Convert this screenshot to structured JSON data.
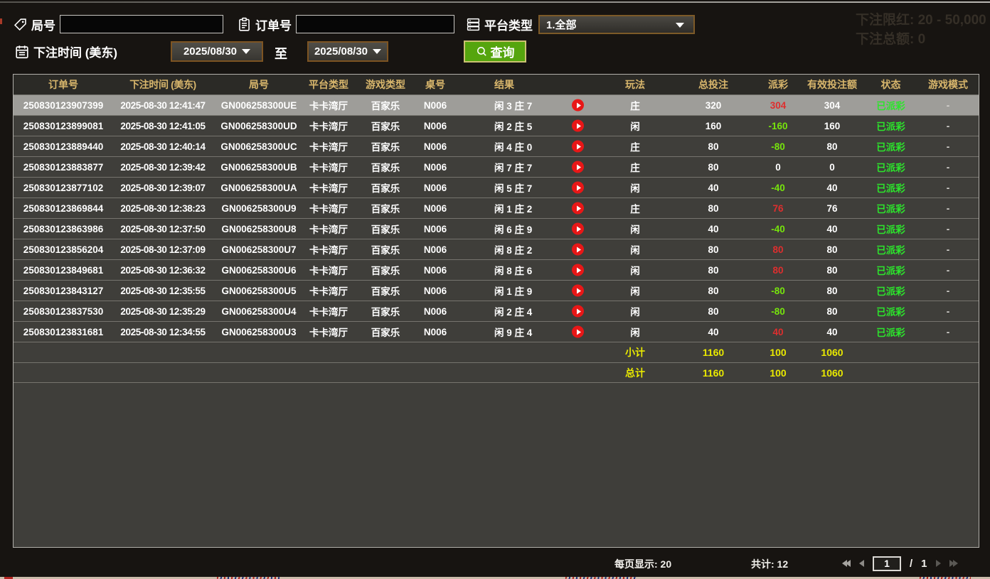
{
  "page": {
    "watermark_line1": "下注限红: 20 - 50,000",
    "watermark_line2": "下注总额: 0"
  },
  "filters": {
    "game_no": {
      "label": "局号",
      "value": "",
      "icon": "tag-icon"
    },
    "order_no": {
      "label": "订单号",
      "value": "",
      "icon": "clipboard-icon"
    },
    "platform": {
      "label": "平台类型",
      "value": "1.全部",
      "icon": "server-icon"
    },
    "bet_time": {
      "label": "下注时间 (美东)",
      "icon": "calendar-icon"
    },
    "date_from": "2025/08/30",
    "to_label": "至",
    "date_to": "2025/08/30",
    "query": {
      "label": "查询",
      "icon": "search-icon"
    }
  },
  "table": {
    "headers": [
      "订单号",
      "下注时间 (美东)",
      "局号",
      "平台类型",
      "游戏类型",
      "桌号",
      "结果",
      "玩法",
      "总投注",
      "派彩",
      "有效投注额",
      "状态",
      "游戏模式"
    ],
    "rows": [
      {
        "order_no": "250830123907399",
        "bet_time": "2025-08-30 12:41:47",
        "game_no": "GN006258300UE",
        "platform": "卡卡湾厅",
        "game_type": "百家乐",
        "table_no": "N006",
        "result": "闲 3 庄 7",
        "play_type": "庄",
        "total_bet": 320,
        "payout": 304,
        "valid_bet": 304,
        "status": "已派彩",
        "game_mode": "-",
        "selected": true
      },
      {
        "order_no": "250830123899081",
        "bet_time": "2025-08-30 12:41:05",
        "game_no": "GN006258300UD",
        "platform": "卡卡湾厅",
        "game_type": "百家乐",
        "table_no": "N006",
        "result": "闲 2 庄 5",
        "play_type": "闲",
        "total_bet": 160,
        "payout": -160,
        "valid_bet": 160,
        "status": "已派彩",
        "game_mode": "-",
        "selected": false
      },
      {
        "order_no": "250830123889440",
        "bet_time": "2025-08-30 12:40:14",
        "game_no": "GN006258300UC",
        "platform": "卡卡湾厅",
        "game_type": "百家乐",
        "table_no": "N006",
        "result": "闲 4 庄 0",
        "play_type": "庄",
        "total_bet": 80,
        "payout": -80,
        "valid_bet": 80,
        "status": "已派彩",
        "game_mode": "-",
        "selected": false
      },
      {
        "order_no": "250830123883877",
        "bet_time": "2025-08-30 12:39:42",
        "game_no": "GN006258300UB",
        "platform": "卡卡湾厅",
        "game_type": "百家乐",
        "table_no": "N006",
        "result": "闲 7 庄 7",
        "play_type": "庄",
        "total_bet": 80,
        "payout": 0,
        "valid_bet": 0,
        "status": "已派彩",
        "game_mode": "-",
        "selected": false
      },
      {
        "order_no": "250830123877102",
        "bet_time": "2025-08-30 12:39:07",
        "game_no": "GN006258300UA",
        "platform": "卡卡湾厅",
        "game_type": "百家乐",
        "table_no": "N006",
        "result": "闲 5 庄 7",
        "play_type": "闲",
        "total_bet": 40,
        "payout": -40,
        "valid_bet": 40,
        "status": "已派彩",
        "game_mode": "-",
        "selected": false
      },
      {
        "order_no": "250830123869844",
        "bet_time": "2025-08-30 12:38:23",
        "game_no": "GN006258300U9",
        "platform": "卡卡湾厅",
        "game_type": "百家乐",
        "table_no": "N006",
        "result": "闲 1 庄 2",
        "play_type": "庄",
        "total_bet": 80,
        "payout": 76,
        "valid_bet": 76,
        "status": "已派彩",
        "game_mode": "-",
        "selected": false
      },
      {
        "order_no": "250830123863986",
        "bet_time": "2025-08-30 12:37:50",
        "game_no": "GN006258300U8",
        "platform": "卡卡湾厅",
        "game_type": "百家乐",
        "table_no": "N006",
        "result": "闲 6 庄 9",
        "play_type": "闲",
        "total_bet": 40,
        "payout": -40,
        "valid_bet": 40,
        "status": "已派彩",
        "game_mode": "-",
        "selected": false
      },
      {
        "order_no": "250830123856204",
        "bet_time": "2025-08-30 12:37:09",
        "game_no": "GN006258300U7",
        "platform": "卡卡湾厅",
        "game_type": "百家乐",
        "table_no": "N006",
        "result": "闲 8 庄 2",
        "play_type": "闲",
        "total_bet": 80,
        "payout": 80,
        "valid_bet": 80,
        "status": "已派彩",
        "game_mode": "-",
        "selected": false
      },
      {
        "order_no": "250830123849681",
        "bet_time": "2025-08-30 12:36:32",
        "game_no": "GN006258300U6",
        "platform": "卡卡湾厅",
        "game_type": "百家乐",
        "table_no": "N006",
        "result": "闲 8 庄 6",
        "play_type": "闲",
        "total_bet": 80,
        "payout": 80,
        "valid_bet": 80,
        "status": "已派彩",
        "game_mode": "-",
        "selected": false
      },
      {
        "order_no": "250830123843127",
        "bet_time": "2025-08-30 12:35:55",
        "game_no": "GN006258300U5",
        "platform": "卡卡湾厅",
        "game_type": "百家乐",
        "table_no": "N006",
        "result": "闲 1 庄 9",
        "play_type": "闲",
        "total_bet": 80,
        "payout": -80,
        "valid_bet": 80,
        "status": "已派彩",
        "game_mode": "-",
        "selected": false
      },
      {
        "order_no": "250830123837530",
        "bet_time": "2025-08-30 12:35:29",
        "game_no": "GN006258300U4",
        "platform": "卡卡湾厅",
        "game_type": "百家乐",
        "table_no": "N006",
        "result": "闲 2 庄 4",
        "play_type": "闲",
        "total_bet": 80,
        "payout": -80,
        "valid_bet": 80,
        "status": "已派彩",
        "game_mode": "-",
        "selected": false
      },
      {
        "order_no": "250830123831681",
        "bet_time": "2025-08-30 12:34:55",
        "game_no": "GN006258300U3",
        "platform": "卡卡湾厅",
        "game_type": "百家乐",
        "table_no": "N006",
        "result": "闲 9 庄 4",
        "play_type": "闲",
        "total_bet": 40,
        "payout": 40,
        "valid_bet": 40,
        "status": "已派彩",
        "game_mode": "-",
        "selected": false
      }
    ],
    "subtotal": {
      "label": "小计",
      "total_bet": 1160,
      "payout": 100,
      "valid_bet": 1060
    },
    "grand_total": {
      "label": "总计",
      "total_bet": 1160,
      "payout": 100,
      "valid_bet": 1060
    }
  },
  "pagination": {
    "per_page": "每页显示: 20",
    "total_count": "共计: 12",
    "page_value": "1",
    "page_separator": "/",
    "total_pages": "1"
  },
  "colors": {
    "query_button_green": "#55a50e",
    "win_red": "#df2e2e",
    "loss_green": "#76e40c",
    "paid_status_green": "#2ce52c",
    "totals_yellow": "#e9e900",
    "header_gold": "#d8b66c"
  }
}
